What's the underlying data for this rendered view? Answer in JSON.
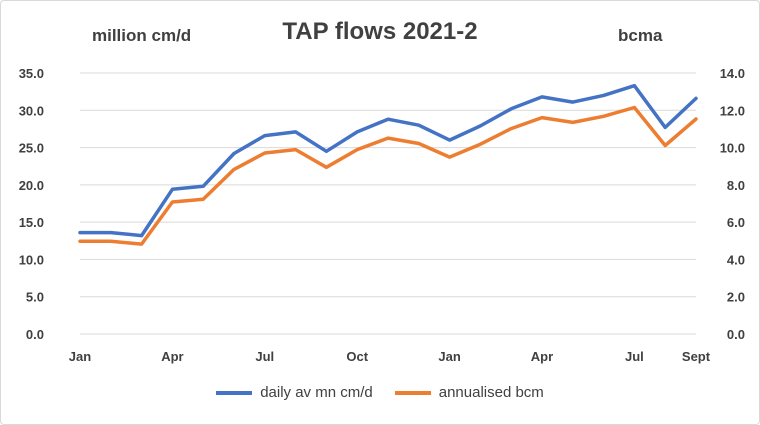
{
  "chart_data": {
    "type": "line",
    "title": "TAP flows 2021-2",
    "ylabel_left": "million cm/d",
    "ylabel_right": "bcma",
    "ylim_left": [
      0,
      35
    ],
    "ylim_right": [
      0,
      14
    ],
    "yticks_left": [
      "35.0",
      "30.0",
      "25.0",
      "20.0",
      "15.0",
      "10.0",
      "5.0",
      "0.0"
    ],
    "yticks_right": [
      "14.0",
      "12.0",
      "10.0",
      "8.0",
      "6.0",
      "4.0",
      "2.0",
      "0.0"
    ],
    "x_labels": [
      "Jan",
      "Apr",
      "Jul",
      "Oct",
      "Jan",
      "Apr",
      "Jul",
      "Sept"
    ],
    "x_label_index": [
      0,
      3,
      6,
      9,
      12,
      15,
      18,
      20
    ],
    "grid": true,
    "legend_position": "bottom",
    "series": [
      {
        "name": "daily av mn cm/d",
        "axis": "left",
        "color": "#4472c4",
        "values": [
          13.6,
          13.6,
          13.2,
          19.4,
          19.8,
          24.2,
          26.6,
          27.1,
          24.5,
          27.1,
          28.8,
          28.0,
          26.0,
          27.9,
          30.2,
          31.8,
          31.1,
          32.0,
          33.3,
          27.7,
          31.6
        ]
      },
      {
        "name": "annualised bcm",
        "axis": "right",
        "color": "#ed7d31",
        "values": [
          4.97,
          4.97,
          4.82,
          7.08,
          7.23,
          8.83,
          9.71,
          9.89,
          8.94,
          9.89,
          10.51,
          10.22,
          9.49,
          10.18,
          11.02,
          11.61,
          11.35,
          11.68,
          12.15,
          10.11,
          11.53
        ]
      }
    ]
  }
}
